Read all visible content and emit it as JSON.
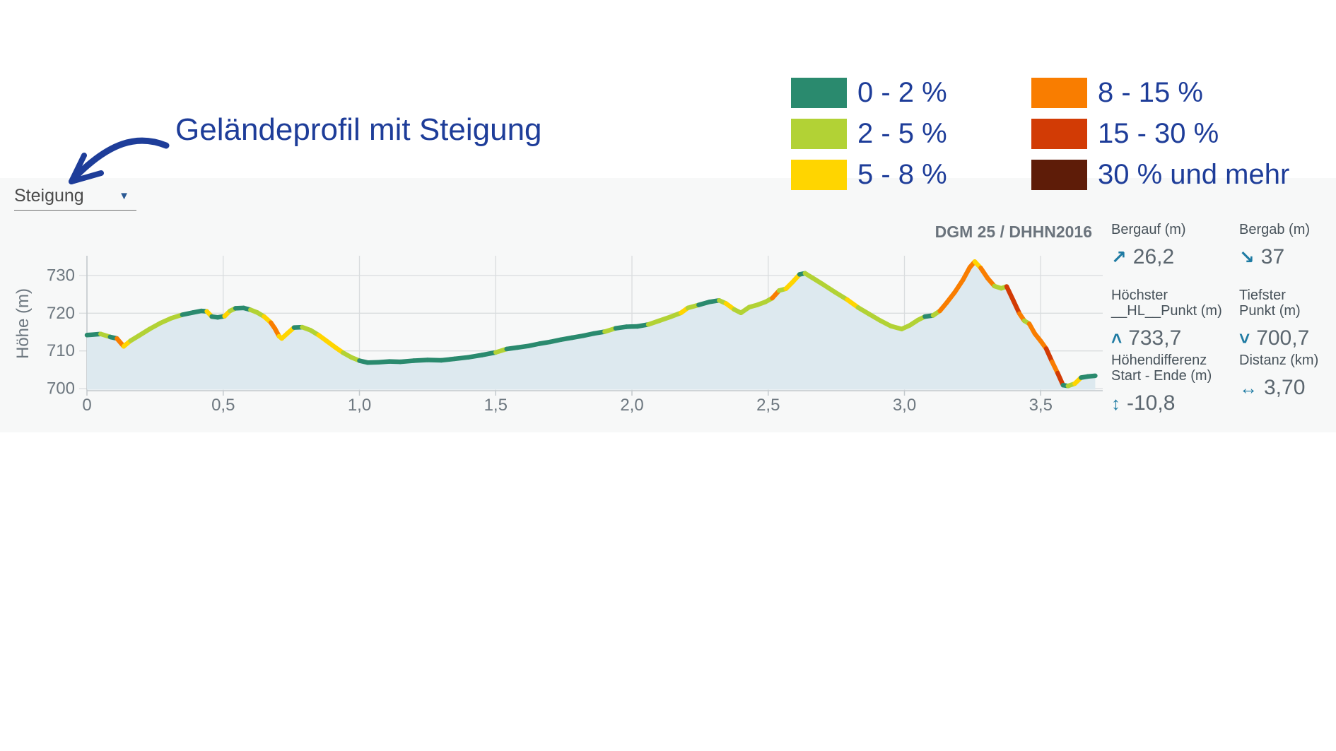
{
  "colors": {
    "navy": "#1e3d99",
    "caret_blue": "#2c5a94",
    "steigung_text": "#4a4a4a",
    "band_bg": "#f7f8f8",
    "fill_blue": "#dde9ef",
    "grid_gray": "#d9dcde",
    "axis_gray": "#c2c8cc",
    "tick_label_gray": "#6e7880",
    "dgm_gray": "#6a737c",
    "label_gray_dark": "#47525a",
    "value_gray": "#5b666f",
    "icon_blue": "#1f7ba3"
  },
  "annotation": {
    "title": "Geländeprofil mit Steigung"
  },
  "dropdown": {
    "label": "Steigung",
    "caret_glyph": "▼"
  },
  "legend": {
    "items": [
      {
        "label": "0 - 2 %",
        "color": "#2a8a6e"
      },
      {
        "label": "2 - 5 %",
        "color": "#b2d235"
      },
      {
        "label": "5 - 8 %",
        "color": "#ffd500"
      },
      {
        "label": "8 - 15 %",
        "color": "#f97d00"
      },
      {
        "label": "15 - 30 %",
        "color": "#d23b05"
      },
      {
        "label": "30 % und mehr",
        "color": "#5e1c08"
      }
    ]
  },
  "chart": {
    "source": "DGM 25 / DHHN2016"
  },
  "stats": {
    "bergauf": {
      "label_line1": "Bergauf (m)",
      "label_line2": "",
      "icon": "↗",
      "value": "26,2"
    },
    "bergab": {
      "label_line1": "Bergab (m)",
      "label_line2": "",
      "icon": "↘",
      "value": "37"
    },
    "hoechster": {
      "label_line1": "Höchster",
      "label_line2": "Punkt (m)",
      "icon": "˄",
      "value": "733,7"
    },
    "tiefster": {
      "label_line1": "Tiefster",
      "label_line2": "Punkt (m)",
      "icon": "˅",
      "value": "700,7"
    },
    "hoehendiff": {
      "label_line1": "Höhendifferenz",
      "label_line2": "Start - Ende (m)",
      "icon": "↕",
      "value": "-10,8"
    },
    "distanz": {
      "label_line1": "Distanz (km)",
      "label_line2": "",
      "icon": "↔",
      "value": "3,70"
    }
  },
  "chart_data": {
    "type": "area",
    "title": "Geländeprofil mit Steigung",
    "source": "DGM 25 / DHHN2016",
    "xlabel": "Distanz (km)",
    "ylabel": "Höhe (m)",
    "xlim": [
      0,
      3.7
    ],
    "ylim": [
      700,
      735
    ],
    "grid": true,
    "x_ticks": [
      {
        "km": 0.0,
        "label": "0"
      },
      {
        "km": 0.5,
        "label": "0,5"
      },
      {
        "km": 1.0,
        "label": "1,0"
      },
      {
        "km": 1.5,
        "label": "1,5"
      },
      {
        "km": 2.0,
        "label": "2,0"
      },
      {
        "km": 2.5,
        "label": "2,5"
      },
      {
        "km": 3.0,
        "label": "3,0"
      },
      {
        "km": 3.5,
        "label": "3,5"
      }
    ],
    "y_ticks": [
      {
        "m": 700,
        "label": "700"
      },
      {
        "m": 710,
        "label": "710"
      },
      {
        "m": 720,
        "label": "720"
      },
      {
        "m": 730,
        "label": "730"
      }
    ],
    "slope_scale": [
      {
        "max_pct": 2,
        "color": "#2a8a6e",
        "label": "0 - 2 %"
      },
      {
        "max_pct": 5,
        "color": "#b2d235",
        "label": "2 - 5 %"
      },
      {
        "max_pct": 8,
        "color": "#ffd500",
        "label": "5 - 8 %"
      },
      {
        "max_pct": 15,
        "color": "#f97d00",
        "label": "8 - 15 %"
      },
      {
        "max_pct": 30,
        "color": "#d23b05",
        "label": "15 - 30 %"
      },
      {
        "max_pct": null,
        "color": "#5e1c08",
        "label": "30 % und mehr"
      }
    ],
    "summary": {
      "bergauf_m": "26,2",
      "bergab_m": "37",
      "hoechster_punkt_m": "733,7",
      "tiefster_punkt_m": "700,7",
      "hoehendifferenz_start_ende_m": "-10,8",
      "distanz_km": "3,70"
    },
    "profile_km_m": [
      [
        0.0,
        714.2
      ],
      [
        0.05,
        714.5
      ],
      [
        0.085,
        713.7
      ],
      [
        0.11,
        713.3
      ],
      [
        0.135,
        711.2
      ],
      [
        0.16,
        712.7
      ],
      [
        0.19,
        714.0
      ],
      [
        0.23,
        715.8
      ],
      [
        0.27,
        717.4
      ],
      [
        0.31,
        718.7
      ],
      [
        0.35,
        719.6
      ],
      [
        0.39,
        720.2
      ],
      [
        0.42,
        720.6
      ],
      [
        0.44,
        720.5
      ],
      [
        0.458,
        719.1
      ],
      [
        0.48,
        718.9
      ],
      [
        0.505,
        719.2
      ],
      [
        0.525,
        720.6
      ],
      [
        0.545,
        721.3
      ],
      [
        0.575,
        721.4
      ],
      [
        0.6,
        720.9
      ],
      [
        0.625,
        720.2
      ],
      [
        0.65,
        719.1
      ],
      [
        0.675,
        717.5
      ],
      [
        0.69,
        715.9
      ],
      [
        0.705,
        713.9
      ],
      [
        0.715,
        713.3
      ],
      [
        0.735,
        714.6
      ],
      [
        0.76,
        716.2
      ],
      [
        0.79,
        716.3
      ],
      [
        0.82,
        715.5
      ],
      [
        0.85,
        714.2
      ],
      [
        0.88,
        712.6
      ],
      [
        0.91,
        711.0
      ],
      [
        0.94,
        709.5
      ],
      [
        0.97,
        708.3
      ],
      [
        1.0,
        707.4
      ],
      [
        1.03,
        706.9
      ],
      [
        1.07,
        707.0
      ],
      [
        1.11,
        707.2
      ],
      [
        1.15,
        707.1
      ],
      [
        1.2,
        707.4
      ],
      [
        1.25,
        707.6
      ],
      [
        1.3,
        707.5
      ],
      [
        1.35,
        707.9
      ],
      [
        1.4,
        708.3
      ],
      [
        1.45,
        708.9
      ],
      [
        1.5,
        709.6
      ],
      [
        1.54,
        710.5
      ],
      [
        1.58,
        710.9
      ],
      [
        1.62,
        711.3
      ],
      [
        1.66,
        711.9
      ],
      [
        1.7,
        712.4
      ],
      [
        1.74,
        713.0
      ],
      [
        1.78,
        713.5
      ],
      [
        1.82,
        714.0
      ],
      [
        1.86,
        714.6
      ],
      [
        1.9,
        715.1
      ],
      [
        1.94,
        716.0
      ],
      [
        1.98,
        716.4
      ],
      [
        2.02,
        716.5
      ],
      [
        2.06,
        717.0
      ],
      [
        2.1,
        718.0
      ],
      [
        2.14,
        719.0
      ],
      [
        2.18,
        720.1
      ],
      [
        2.205,
        721.4
      ],
      [
        2.245,
        722.2
      ],
      [
        2.285,
        723.0
      ],
      [
        2.32,
        723.4
      ],
      [
        2.345,
        722.6
      ],
      [
        2.375,
        721.0
      ],
      [
        2.4,
        720.1
      ],
      [
        2.43,
        721.6
      ],
      [
        2.46,
        722.2
      ],
      [
        2.49,
        723.0
      ],
      [
        2.515,
        724.0
      ],
      [
        2.54,
        726.0
      ],
      [
        2.565,
        726.5
      ],
      [
        2.59,
        728.3
      ],
      [
        2.615,
        730.3
      ],
      [
        2.635,
        730.6
      ],
      [
        2.66,
        729.5
      ],
      [
        2.7,
        727.7
      ],
      [
        2.745,
        725.6
      ],
      [
        2.79,
        723.6
      ],
      [
        2.83,
        721.5
      ],
      [
        2.87,
        719.8
      ],
      [
        2.91,
        718.1
      ],
      [
        2.95,
        716.6
      ],
      [
        2.99,
        715.8
      ],
      [
        3.02,
        716.8
      ],
      [
        3.05,
        718.2
      ],
      [
        3.075,
        719.1
      ],
      [
        3.105,
        719.4
      ],
      [
        3.13,
        720.6
      ],
      [
        3.155,
        722.8
      ],
      [
        3.185,
        725.6
      ],
      [
        3.215,
        728.9
      ],
      [
        3.24,
        732.2
      ],
      [
        3.258,
        733.7
      ],
      [
        3.28,
        732.0
      ],
      [
        3.305,
        729.3
      ],
      [
        3.33,
        727.2
      ],
      [
        3.355,
        726.6
      ],
      [
        3.375,
        727.1
      ],
      [
        3.4,
        723.3
      ],
      [
        3.422,
        719.9
      ],
      [
        3.44,
        718.0
      ],
      [
        3.458,
        717.2
      ],
      [
        3.478,
        714.6
      ],
      [
        3.5,
        712.6
      ],
      [
        3.52,
        710.6
      ],
      [
        3.542,
        707.1
      ],
      [
        3.562,
        704.1
      ],
      [
        3.582,
        700.9
      ],
      [
        3.6,
        700.7
      ],
      [
        3.625,
        701.3
      ],
      [
        3.648,
        702.9
      ],
      [
        3.672,
        703.2
      ],
      [
        3.7,
        703.4
      ]
    ]
  }
}
